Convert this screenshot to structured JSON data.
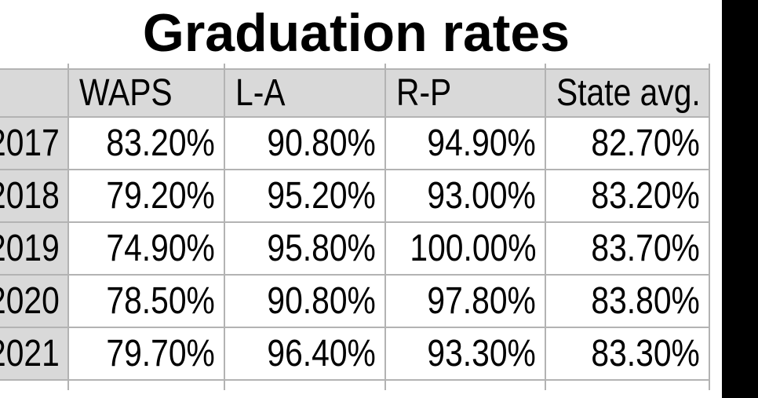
{
  "title": "Graduation rates",
  "table": {
    "header": [
      "",
      "WAPS",
      "L-A",
      "R-P",
      "State avg."
    ],
    "rows": [
      {
        "year": "2017",
        "values": [
          "83.20%",
          "90.80%",
          "94.90%",
          "82.70%"
        ]
      },
      {
        "year": "2018",
        "values": [
          "79.20%",
          "95.20%",
          "93.00%",
          "83.20%"
        ]
      },
      {
        "year": "2019",
        "values": [
          "74.90%",
          "95.80%",
          "100.00%",
          "83.70%"
        ]
      },
      {
        "year": "2020",
        "values": [
          "78.50%",
          "90.80%",
          "97.80%",
          "83.80%"
        ]
      },
      {
        "year": "2021",
        "values": [
          "79.70%",
          "96.40%",
          "93.30%",
          "83.30%"
        ]
      }
    ]
  },
  "colors": {
    "background": "#ffffff",
    "header_fill": "#d9d9d9",
    "grid_line": "#b3b3b3",
    "text": "#000000",
    "side_bar": "#000000"
  },
  "chart_data": {
    "type": "table",
    "title": "Graduation rates",
    "categories": [
      "2017",
      "2018",
      "2019",
      "2020",
      "2021"
    ],
    "series": [
      {
        "name": "WAPS",
        "values": [
          83.2,
          79.2,
          74.9,
          78.5,
          79.7
        ]
      },
      {
        "name": "L-A",
        "values": [
          90.8,
          95.2,
          95.8,
          90.8,
          96.4
        ]
      },
      {
        "name": "R-P",
        "values": [
          94.9,
          93.0,
          100.0,
          97.8,
          93.3
        ]
      },
      {
        "name": "State avg.",
        "values": [
          82.7,
          83.2,
          83.7,
          83.8,
          83.3
        ]
      }
    ],
    "unit": "%"
  }
}
